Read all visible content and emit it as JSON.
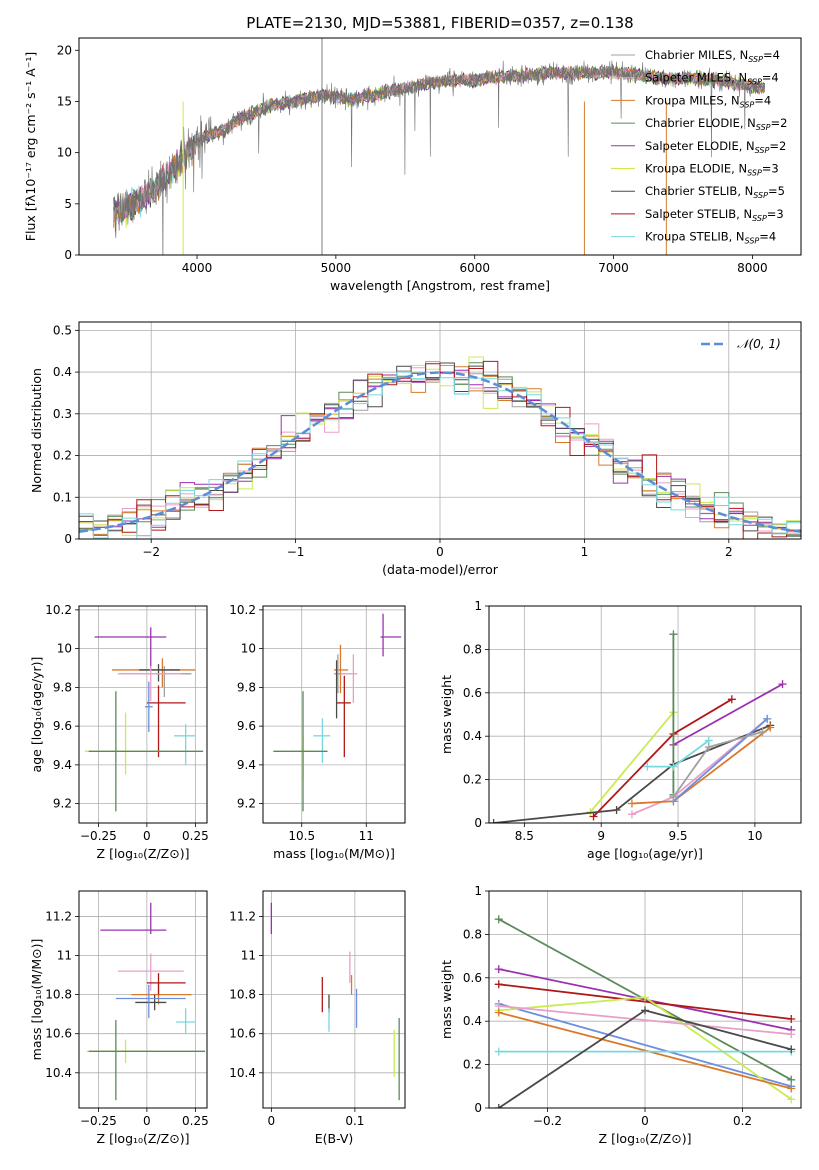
{
  "figure_title": "PLATE=2130, MJD=53881, FIBERID=0357, z=0.138",
  "colors": {
    "Chabrier MILES": "#a0a0a0",
    "Salpeter MILES": "#e8a0c8",
    "Kroupa MILES": "#d87a2a",
    "Chabrier ELODIE": "#5a8a5a",
    "Salpeter ELODIE": "#9a30b0",
    "Kroupa ELODIE": "#c8ec50",
    "Chabrier STELIB": "#4a4a4a",
    "Salpeter STELIB": "#b01818",
    "Kroupa STELIB": "#78d8e0",
    "normal": "#5b8ddb",
    "blue_extra": "#6c8fe0"
  },
  "chart_data": [
    {
      "id": "spectrum",
      "type": "line",
      "title": "PLATE=2130, MJD=53881, FIBERID=0357, z=0.138",
      "xlabel": "wavelength [Angstrom, rest frame]",
      "ylabel": "Flux [fλ10⁻¹⁷ erg cm⁻² s⁻¹ A⁻¹]",
      "xlim": [
        3150,
        8350
      ],
      "ylim": [
        0,
        21.2
      ],
      "xticks": [
        4000,
        5000,
        6000,
        7000,
        8000
      ],
      "yticks": [
        0,
        5,
        10,
        15,
        20
      ],
      "legend_position": "right",
      "legend": [
        {
          "name": "Chabrier MILES",
          "nssp": "4"
        },
        {
          "name": "Salpeter MILES",
          "nssp": "4"
        },
        {
          "name": "Kroupa MILES",
          "nssp": "4"
        },
        {
          "name": "Chabrier ELODIE",
          "nssp": "2"
        },
        {
          "name": "Salpeter ELODIE",
          "nssp": "2"
        },
        {
          "name": "Kroupa ELODIE",
          "nssp": "3"
        },
        {
          "name": "Chabrier STELIB",
          "nssp": "5"
        },
        {
          "name": "Salpeter STELIB",
          "nssp": "3"
        },
        {
          "name": "Kroupa STELIB",
          "nssp": "4"
        }
      ],
      "data_envelope": {
        "x": [
          3400,
          3500,
          3600,
          3700,
          3800,
          3900,
          4000,
          4100,
          4200,
          4300,
          4400,
          4500,
          4600,
          4700,
          4800,
          4900,
          5000,
          5100,
          5200,
          5300,
          5400,
          5500,
          5600,
          5700,
          5800,
          5900,
          6000,
          6200,
          6400,
          6600,
          6800,
          7000,
          7200,
          7400,
          7600,
          7800,
          8000,
          8090
        ],
        "y": [
          4.3,
          4.8,
          5.5,
          6.5,
          8.0,
          9.5,
          11.0,
          11.8,
          12.2,
          13.3,
          13.8,
          14.5,
          14.8,
          15.0,
          15.3,
          15.6,
          15.5,
          15.2,
          15.4,
          15.7,
          16.1,
          16.3,
          16.6,
          16.8,
          17.0,
          17.1,
          17.1,
          17.4,
          17.6,
          17.8,
          17.7,
          17.9,
          17.6,
          17.2,
          17.3,
          17.0,
          16.5,
          16.3
        ]
      }
    },
    {
      "id": "residuals",
      "type": "line",
      "xlabel": "(data-model)/error",
      "ylabel": "Normed distribution",
      "xlim": [
        -2.5,
        2.5
      ],
      "ylim": [
        0,
        0.52
      ],
      "xticks": [
        -2,
        -1,
        0,
        1,
        2
      ],
      "yticks": [
        0.0,
        0.1,
        0.2,
        0.3,
        0.4,
        0.5
      ],
      "legend_position": "upper right",
      "normal_label": "𝒩(0, 1)",
      "series_note": "nine step histograms, one per model, same colors as the spectrum legend"
    },
    {
      "id": "age_vs_Z",
      "type": "scatter",
      "xlabel": "Z [log₁₀(Z/Z⊙)]",
      "ylabel": "age [log₁₀(age/yr)]",
      "xlim": [
        -0.35,
        0.31
      ],
      "ylim": [
        9.1,
        10.22
      ],
      "xticks": [
        -0.25,
        0.0,
        0.25
      ],
      "yticks": [
        9.2,
        9.4,
        9.6,
        9.8,
        10.0,
        10.2
      ],
      "points": [
        {
          "model": "Salpeter ELODIE",
          "x": 0.02,
          "y": 10.06,
          "xerr": [
            0.29,
            0.08
          ],
          "yerr": [
            0.17,
            0.05
          ]
        },
        {
          "model": "Kroupa MILES",
          "x": 0.08,
          "y": 9.89,
          "xerr": [
            0.26,
            0.17
          ],
          "yerr": [
            0.09,
            0.06
          ]
        },
        {
          "model": "Chabrier MILES",
          "x": 0.09,
          "y": 9.87,
          "xerr": [
            0.22,
            0.14
          ],
          "yerr": [
            0.12,
            0.04
          ]
        },
        {
          "model": "Chabrier STELIB",
          "x": 0.06,
          "y": 9.89,
          "xerr": [
            0.1,
            0.11
          ],
          "yerr": [
            0.06,
            0.03
          ]
        },
        {
          "model": "Salpeter MILES",
          "x": 0.02,
          "y": 9.87,
          "xerr": [
            0.17,
            0.16
          ],
          "yerr": [
            0.14,
            0.04
          ]
        },
        {
          "model": "Kroupa STELIB",
          "x": 0.2,
          "y": 9.55,
          "xerr": [
            0.06,
            0.05
          ],
          "yerr": [
            0.15,
            0.06
          ]
        },
        {
          "model": "Salpeter STELIB",
          "x": 0.06,
          "y": 9.72,
          "xerr": [
            0.06,
            0.14
          ],
          "yerr": [
            0.28,
            0.09
          ]
        },
        {
          "model": "Kroupa ELODIE",
          "x": -0.11,
          "y": 9.47,
          "xerr": [
            0.21,
            0.2
          ],
          "yerr": [
            0.12,
            0.2
          ]
        },
        {
          "model": "Chabrier ELODIE",
          "x": -0.16,
          "y": 9.47,
          "xerr": [
            0.14,
            0.45
          ],
          "yerr": [
            0.31,
            0.31
          ]
        },
        {
          "model": "Chabrier MILES (blue)",
          "x": 0.01,
          "y": 9.7,
          "xerr": [
            0.02,
            0.02
          ],
          "yerr": [
            0.13,
            0.13
          ]
        }
      ]
    },
    {
      "id": "age_vs_mass",
      "type": "scatter",
      "xlabel": "mass [log₁₀(M/M⊙)]",
      "ylabel": "",
      "xlim": [
        10.2,
        11.3
      ],
      "ylim": [
        9.1,
        10.22
      ],
      "xticks": [
        10.5,
        11.0
      ],
      "yticks": [
        9.2,
        9.4,
        9.6,
        9.8,
        10.0,
        10.2
      ],
      "points": [
        {
          "model": "Salpeter ELODIE",
          "x": 11.13,
          "y": 10.06,
          "xerr": [
            0.02,
            0.14
          ],
          "yerr": [
            0.1,
            0.12
          ]
        },
        {
          "model": "Kroupa MILES",
          "x": 10.8,
          "y": 9.89,
          "xerr": [
            0.05,
            0.06
          ],
          "yerr": [
            0.12,
            0.13
          ]
        },
        {
          "model": "Chabrier MILES",
          "x": 10.78,
          "y": 9.87,
          "xerr": [
            0.03,
            0.06
          ],
          "yerr": [
            0.1,
            0.1
          ]
        },
        {
          "model": "Salpeter MILES",
          "x": 10.9,
          "y": 9.87,
          "xerr": [
            0.1,
            0.03
          ],
          "yerr": [
            0.15,
            0.1
          ]
        },
        {
          "model": "Kroupa STELIB",
          "x": 10.66,
          "y": 9.55,
          "xerr": [
            0.07,
            0.06
          ],
          "yerr": [
            0.14,
            0.09
          ]
        },
        {
          "model": "Salpeter STELIB",
          "x": 10.83,
          "y": 9.72,
          "xerr": [
            0.06,
            0.05
          ],
          "yerr": [
            0.28,
            0.14
          ]
        },
        {
          "model": "Kroupa ELODIE",
          "x": 10.51,
          "y": 9.47,
          "xerr": [
            0.05,
            0.06
          ],
          "yerr": [
            0.15,
            0.08
          ]
        },
        {
          "model": "Chabrier ELODIE",
          "x": 10.51,
          "y": 9.47,
          "xerr": [
            0.23,
            0.19
          ],
          "yerr": [
            0.31,
            0.31
          ]
        },
        {
          "model": "Chabrier STELIB",
          "x": 10.77,
          "y": 9.79,
          "xerr": [
            0.0,
            0.0
          ],
          "yerr": [
            0.15,
            0.15
          ]
        }
      ]
    },
    {
      "id": "mass_weight_vs_age",
      "type": "line",
      "xlabel": "age [log₁₀(age/yr)]",
      "ylabel": "mass weight",
      "xlim": [
        8.27,
        10.3
      ],
      "ylim": [
        0,
        1.0
      ],
      "xticks": [
        8.5,
        9.0,
        9.5,
        10.0
      ],
      "yticks": [
        0.0,
        0.2,
        0.4,
        0.6,
        0.8,
        1.0
      ],
      "series": [
        {
          "model": "Salpeter ELODIE",
          "x": [
            9.47,
            10.18
          ],
          "y": [
            0.36,
            0.64
          ]
        },
        {
          "model": "Salpeter STELIB",
          "x": [
            8.95,
            9.47,
            9.85
          ],
          "y": [
            0.03,
            0.41,
            0.57
          ]
        },
        {
          "model": "Kroupa ELODIE",
          "x": [
            8.93,
            9.47
          ],
          "y": [
            0.05,
            0.51
          ]
        },
        {
          "model": "Chabrier ELODIE",
          "x": [
            9.47,
            9.47
          ],
          "y": [
            0.13,
            0.87
          ]
        },
        {
          "model": "Chabrier STELIB",
          "x": [
            8.3,
            9.1,
            9.47,
            10.1
          ],
          "y": [
            0.0,
            0.06,
            0.27,
            0.45
          ]
        },
        {
          "model": "Salpeter MILES",
          "x": [
            9.2,
            9.47,
            10.08
          ],
          "y": [
            0.04,
            0.12,
            0.48
          ]
        },
        {
          "model": "Kroupa MILES",
          "x": [
            9.2,
            9.47,
            10.1
          ],
          "y": [
            0.09,
            0.1,
            0.44
          ]
        },
        {
          "model": "Kroupa STELIB",
          "x": [
            9.3,
            9.47,
            9.7
          ],
          "y": [
            0.26,
            0.26,
            0.38
          ]
        },
        {
          "model": "blue",
          "x": [
            9.47,
            10.08
          ],
          "y": [
            0.1,
            0.48
          ]
        },
        {
          "model": "Chabrier MILES",
          "x": [
            9.47,
            9.7,
            10.05
          ],
          "y": [
            0.12,
            0.35,
            0.42
          ]
        }
      ]
    },
    {
      "id": "mass_vs_Z",
      "type": "scatter",
      "xlabel": "Z [log₁₀(Z/Z⊙)]",
      "ylabel": "mass [log₁₀(M/M⊙)]",
      "xlim": [
        -0.35,
        0.31
      ],
      "ylim": [
        10.22,
        11.33
      ],
      "xticks": [
        -0.25,
        0.0,
        0.25
      ],
      "yticks": [
        10.4,
        10.6,
        10.8,
        11.0,
        11.2
      ],
      "points": [
        {
          "model": "Salpeter ELODIE",
          "x": 0.02,
          "y": 11.13,
          "xerr": [
            0.26,
            0.08
          ],
          "yerr": [
            0.02,
            0.14
          ]
        },
        {
          "model": "Salpeter MILES",
          "x": 0.02,
          "y": 10.92,
          "xerr": [
            0.17,
            0.17
          ],
          "yerr": [
            0.1,
            0.09
          ]
        },
        {
          "model": "Kroupa MILES",
          "x": 0.06,
          "y": 10.8,
          "xerr": [
            0.14,
            0.17
          ],
          "yerr": [
            0.05,
            0.06
          ]
        },
        {
          "model": "Salpeter STELIB",
          "x": 0.06,
          "y": 10.86,
          "xerr": [
            0.06,
            0.14
          ],
          "yerr": [
            0.06,
            0.05
          ]
        },
        {
          "model": "Chabrier STELIB",
          "x": 0.04,
          "y": 10.76,
          "xerr": [
            0.1,
            0.06
          ],
          "yerr": [
            0.04,
            0.04
          ]
        },
        {
          "model": "blue",
          "x": 0.01,
          "y": 10.78,
          "xerr": [
            0.17,
            0.19
          ],
          "yerr": [
            0.1,
            0.07
          ]
        },
        {
          "model": "Kroupa STELIB",
          "x": 0.2,
          "y": 10.66,
          "xerr": [
            0.05,
            0.05
          ],
          "yerr": [
            0.06,
            0.07
          ]
        },
        {
          "model": "Kroupa ELODIE",
          "x": -0.11,
          "y": 10.51,
          "xerr": [
            0.2,
            0.13
          ],
          "yerr": [
            0.06,
            0.06
          ]
        },
        {
          "model": "Chabrier ELODIE",
          "x": -0.16,
          "y": 10.51,
          "xerr": [
            0.14,
            0.46
          ],
          "yerr": [
            0.25,
            0.16
          ]
        }
      ]
    },
    {
      "id": "mass_vs_ebv",
      "type": "scatter",
      "xlabel": "E(B-V)",
      "ylabel": "",
      "xlim": [
        -0.01,
        0.16
      ],
      "ylim": [
        10.22,
        11.33
      ],
      "xticks": [
        0.0,
        0.1
      ],
      "yticks": [
        10.4,
        10.6,
        10.8,
        11.0,
        11.2
      ],
      "points": [
        {
          "model": "Salpeter ELODIE",
          "x": 0.0,
          "y": 11.18,
          "yerr": [
            0.07,
            0.09
          ]
        },
        {
          "model": "Salpeter STELIB",
          "x": 0.061,
          "y": 10.8,
          "yerr": [
            0.09,
            0.09
          ]
        },
        {
          "model": "Chabrier STELIB",
          "x": 0.069,
          "y": 10.76,
          "yerr": [
            0.05,
            0.04
          ]
        },
        {
          "model": "Kroupa STELIB",
          "x": 0.069,
          "y": 10.67,
          "yerr": [
            0.06,
            0.06
          ]
        },
        {
          "model": "Salpeter MILES",
          "x": 0.094,
          "y": 10.93,
          "yerr": [
            0.07,
            0.09
          ]
        },
        {
          "model": "Kroupa MILES",
          "x": 0.096,
          "y": 10.83,
          "yerr": [
            0.03,
            0.07
          ]
        },
        {
          "model": "blue",
          "x": 0.102,
          "y": 10.72,
          "yerr": [
            0.09,
            0.11
          ]
        },
        {
          "model": "Kroupa ELODIE",
          "x": 0.147,
          "y": 10.52,
          "yerr": [
            0.14,
            0.1
          ]
        },
        {
          "model": "Chabrier ELODIE",
          "x": 0.153,
          "y": 10.48,
          "yerr": [
            0.22,
            0.2
          ]
        }
      ]
    },
    {
      "id": "mass_weight_vs_Z",
      "type": "line",
      "xlabel": "Z [log₁₀(Z/Z⊙)]",
      "ylabel": "mass weight",
      "xlim": [
        -0.32,
        0.32
      ],
      "ylim": [
        0,
        1.0
      ],
      "xticks": [
        -0.2,
        0.0,
        0.2
      ],
      "yticks": [
        0.0,
        0.2,
        0.4,
        0.6,
        0.8,
        1.0
      ],
      "series": [
        {
          "model": "Chabrier ELODIE",
          "x": [
            -0.3,
            0.3
          ],
          "y": [
            0.87,
            0.13
          ]
        },
        {
          "model": "Salpeter ELODIE",
          "x": [
            -0.3,
            0.3
          ],
          "y": [
            0.64,
            0.36
          ]
        },
        {
          "model": "Salpeter STELIB",
          "x": [
            -0.3,
            0.3
          ],
          "y": [
            0.57,
            0.41
          ]
        },
        {
          "model": "blue",
          "x": [
            -0.3,
            0.3
          ],
          "y": [
            0.48,
            0.1
          ]
        },
        {
          "model": "Kroupa ELODIE",
          "x": [
            -0.3,
            0.0,
            0.3
          ],
          "y": [
            0.45,
            0.51,
            0.04
          ]
        },
        {
          "model": "Salpeter MILES",
          "x": [
            -0.3,
            0.3
          ],
          "y": [
            0.47,
            0.34
          ]
        },
        {
          "model": "Kroupa MILES",
          "x": [
            -0.3,
            0.3
          ],
          "y": [
            0.44,
            0.09
          ]
        },
        {
          "model": "Kroupa STELIB",
          "x": [
            -0.3,
            0.3
          ],
          "y": [
            0.26,
            0.26
          ]
        },
        {
          "model": "Chabrier STELIB",
          "x": [
            -0.3,
            0.0,
            0.3
          ],
          "y": [
            0.0,
            0.45,
            0.27
          ]
        }
      ]
    }
  ]
}
